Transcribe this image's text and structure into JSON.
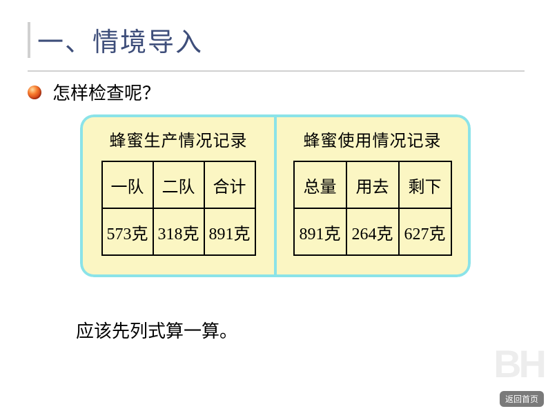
{
  "title": "一、情境导入",
  "question": "怎样检查呢？",
  "panel": {
    "border_color": "#8be3e8",
    "fill_color": "#fbf6c3",
    "left": {
      "title": "蜂蜜生产情况记录",
      "headers": [
        "一队",
        "二队",
        "合计"
      ],
      "values": [
        "573克",
        "318克",
        "891克"
      ]
    },
    "right": {
      "title": "蜂蜜使用情况记录",
      "headers": [
        "总量",
        "用去",
        "剩下"
      ],
      "values": [
        "891克",
        "264克",
        "627克"
      ]
    }
  },
  "conclusion": "应该先列式算一算。",
  "watermark": "BH",
  "back_label": "返回首页",
  "colors": {
    "title_color": "#3e4e7a",
    "divider_color": "#d0d0d0",
    "text_color": "#000000",
    "background": "#ffffff"
  },
  "fontsizes": {
    "title": 38,
    "body": 26,
    "subtitle": 24,
    "cell": 24
  }
}
